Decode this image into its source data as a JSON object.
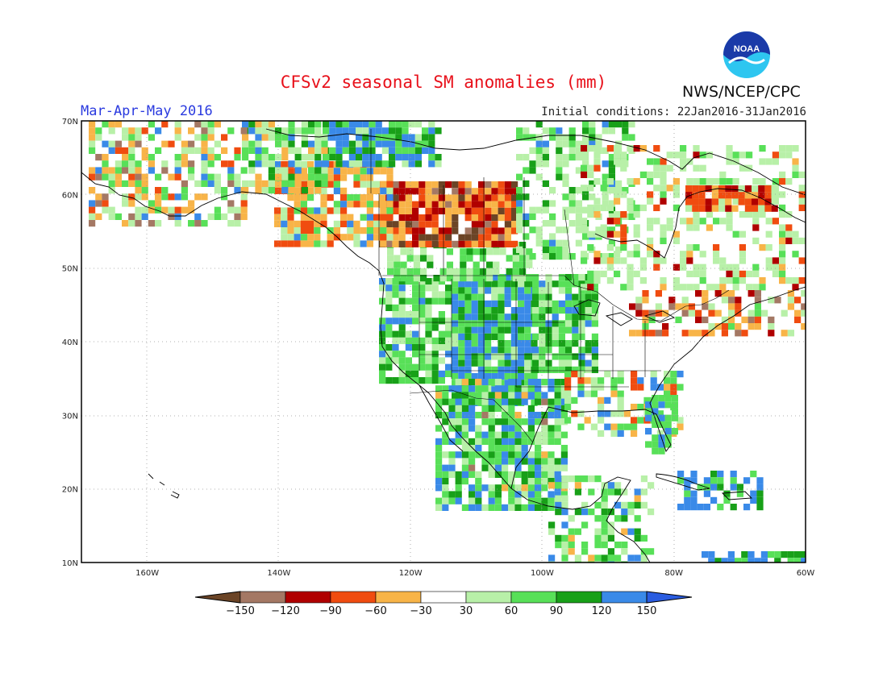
{
  "header": {
    "title": "CFSv2 seasonal SM anomalies (mm)",
    "period": "Mar-Apr-May 2016",
    "initial_conditions": "Initial conditions: 22Jan2016-31Jan2016",
    "agency": "NWS/NCEP/CPC",
    "logo_text": "NOAA",
    "logo_icon": "noaa-logo-icon"
  },
  "map": {
    "projection": "lat-lon",
    "lat_range": [
      10,
      70
    ],
    "lon_range": [
      -170,
      -60
    ],
    "lat_labels": [
      "70N",
      "60N",
      "50N",
      "40N",
      "30N",
      "20N",
      "10N"
    ],
    "lon_labels": [
      "160W",
      "140W",
      "120W",
      "100W",
      "80W",
      "60W"
    ],
    "grid": "dotted"
  },
  "colorbar": {
    "tick_labels": [
      "-150",
      "-120",
      "-90",
      "-60",
      "-30",
      "30",
      "60",
      "90",
      "120",
      "150"
    ],
    "colors": [
      "#6b4426",
      "#a47864",
      "#b00000",
      "#f04c10",
      "#f8b448",
      "#ffffff",
      "#b8f0a8",
      "#58e058",
      "#18a018",
      "#3a8ae8",
      "#2a5ce0"
    ]
  },
  "chart_data": {
    "type": "heatmap",
    "variable": "seasonal SM anomalies (mm)",
    "bins_mm": [
      -150,
      -120,
      -90,
      -60,
      -30,
      30,
      60,
      90,
      120,
      150
    ],
    "regions": [
      {
        "region": "Central Plains / Rockies (US)",
        "anomaly_mm": "90 to >150"
      },
      {
        "region": "Southwest US / Mexico",
        "anomaly_mm": "60 to >150"
      },
      {
        "region": "Western Canada (Alberta)",
        "anomaly_mm": "-150 to -60"
      },
      {
        "region": "Alaska",
        "anomaly_mm": "-120 to 90"
      },
      {
        "region": "Yukon / NW Canada",
        "anomaly_mm": "-60 to >150"
      },
      {
        "region": "Quebec / Labrador",
        "anomaly_mm": "-120 to 60"
      },
      {
        "region": "Great Lakes / Northeast US",
        "anomaly_mm": "-150 to 90"
      },
      {
        "region": "Florida / Caribbean",
        "anomaly_mm": "60 to >150"
      }
    ]
  }
}
